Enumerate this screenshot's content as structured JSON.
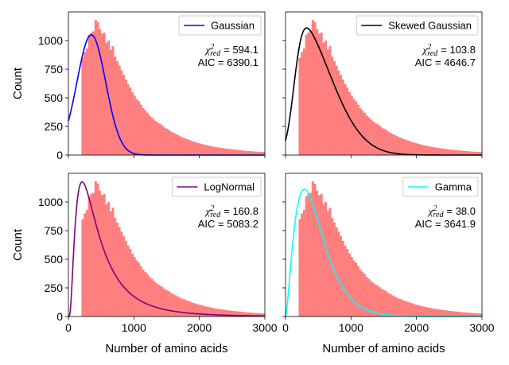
{
  "chart_data": [
    {
      "type": "bar+line",
      "legend": "Gaussian",
      "line_color": "#0000ff",
      "annotation_symbol": "χ",
      "annotation_superscript": "2",
      "annotation_subscript": "red",
      "chi2_text": "= 594.1",
      "aic_text": "AIC = 6390.1",
      "xlim": [
        0,
        3000
      ],
      "ylim": [
        0,
        1250
      ],
      "xticks": [
        0,
        1000,
        2000,
        3000
      ],
      "yticks": [
        0,
        250,
        500,
        750,
        1000
      ],
      "ytick_labels": [
        "0",
        "250",
        "500",
        "750",
        "1000"
      ],
      "ylabel": "Count",
      "xlabel": "",
      "show_xtick_labels": false,
      "show_ytick_labels": true,
      "legend_position": "top-right",
      "fit": {
        "kind": "gaussian",
        "peak": 1050,
        "mean": 350,
        "sigma": 220
      }
    },
    {
      "type": "bar+line",
      "legend": "Skewed Gaussian",
      "line_color": "#000000",
      "annotation_symbol": "χ",
      "annotation_superscript": "2",
      "annotation_subscript": "red",
      "chi2_text": "= 103.8",
      "aic_text": "AIC = 4646.7",
      "xlim": [
        0,
        3000
      ],
      "ylim": [
        0,
        1250
      ],
      "xticks": [
        0,
        1000,
        2000,
        3000
      ],
      "yticks": [
        0,
        250,
        500,
        750,
        1000
      ],
      "ytick_labels": [
        "0",
        "250",
        "500",
        "750",
        "1000"
      ],
      "ylabel": "",
      "xlabel": "",
      "show_xtick_labels": false,
      "show_ytick_labels": false,
      "legend_position": "top-right",
      "fit": {
        "kind": "skewnorm",
        "peak": 1110,
        "loc": 130,
        "scale": 520,
        "alpha": 5
      }
    },
    {
      "type": "bar+line",
      "legend": "LogNormal",
      "line_color": "#800080",
      "annotation_symbol": "χ",
      "annotation_superscript": "2",
      "annotation_subscript": "red",
      "chi2_text": "= 160.8",
      "aic_text": "AIC = 5083.2",
      "xlim": [
        0,
        3000
      ],
      "ylim": [
        0,
        1250
      ],
      "xticks": [
        0,
        1000,
        2000,
        3000
      ],
      "yticks": [
        0,
        250,
        500,
        750,
        1000
      ],
      "ytick_labels": [
        "0",
        "250",
        "500",
        "750",
        "1000"
      ],
      "xtick_labels": [
        "0",
        "1000",
        "2000",
        "3000"
      ],
      "ylabel": "Count",
      "xlabel": "Number of amino acids",
      "show_xtick_labels": true,
      "show_ytick_labels": true,
      "legend_position": "top-right",
      "fit": {
        "kind": "lognormal",
        "peak": 1175,
        "mode": 210,
        "s": 0.8
      }
    },
    {
      "type": "bar+line",
      "legend": "Gamma",
      "line_color": "#00ffff",
      "annotation_symbol": "χ",
      "annotation_superscript": "2",
      "annotation_subscript": "red",
      "chi2_text": "= 38.0",
      "aic_text": "AIC = 3641.9",
      "xlim": [
        0,
        3000
      ],
      "ylim": [
        0,
        1250
      ],
      "xticks": [
        0,
        1000,
        2000,
        3000
      ],
      "yticks": [
        0,
        250,
        500,
        750,
        1000
      ],
      "ytick_labels": [
        "0",
        "250",
        "500",
        "750",
        "1000"
      ],
      "xtick_labels": [
        "0",
        "1000",
        "2000",
        "3000"
      ],
      "ylabel": "",
      "xlabel": "Number of amino acids",
      "show_xtick_labels": true,
      "show_ytick_labels": false,
      "legend_position": "top-right",
      "fit": {
        "kind": "gamma",
        "peak": 1110,
        "k": 2.6,
        "theta": 180
      }
    }
  ],
  "histogram": {
    "bin_width": 33,
    "bins_x_start": 200,
    "counts": [
      850,
      900,
      930,
      1050,
      1070,
      1080,
      1180,
      1160,
      1100,
      1060,
      1070,
      980,
      1000,
      920,
      950,
      860,
      820,
      780,
      740,
      700,
      660,
      620,
      590,
      550,
      520,
      490,
      470,
      440,
      410,
      390,
      370,
      345,
      330,
      310,
      295,
      280,
      270,
      255,
      240,
      230,
      220,
      205,
      195,
      185,
      175,
      165,
      155,
      150,
      140,
      135,
      128,
      120,
      115,
      108,
      103,
      98,
      92,
      88,
      84,
      80,
      76,
      72,
      68,
      66,
      62,
      60,
      57,
      55,
      52,
      50,
      48,
      46,
      44,
      42,
      40,
      38,
      36,
      35,
      33,
      32,
      30,
      29,
      28,
      27,
      26,
      25,
      24,
      23,
      22,
      21,
      20,
      19,
      18,
      18,
      17,
      16,
      16,
      15,
      14,
      14,
      13,
      13,
      12,
      12,
      11,
      11,
      10,
      10,
      10,
      9,
      9,
      9,
      8,
      8,
      8,
      7,
      7,
      7,
      6,
      6,
      6,
      6,
      5,
      5,
      5,
      5,
      4,
      4,
      4,
      4,
      4,
      3,
      3,
      3,
      3,
      3,
      3,
      2,
      2,
      2,
      2,
      2,
      2,
      2,
      2
    ],
    "bar_color": "#ff7f7f"
  }
}
